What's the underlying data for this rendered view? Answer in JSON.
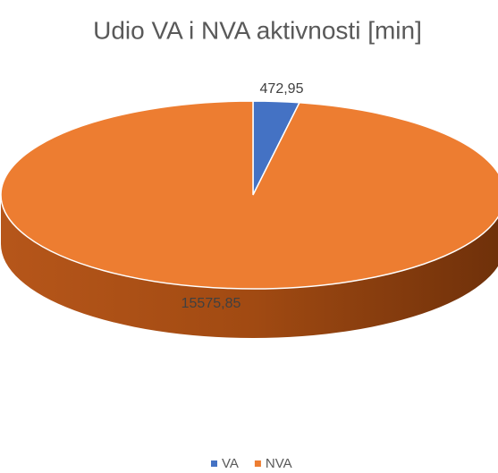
{
  "chart_data": {
    "type": "pie",
    "title": "Udio VA i NVA aktivnosti [min]",
    "categories": [
      "VA",
      "NVA"
    ],
    "values": [
      472.95,
      15575.85
    ],
    "value_labels": [
      "472,95",
      "15575,85"
    ],
    "colors": [
      "#4472c4",
      "#ed7d31"
    ],
    "legend": "bottom"
  }
}
